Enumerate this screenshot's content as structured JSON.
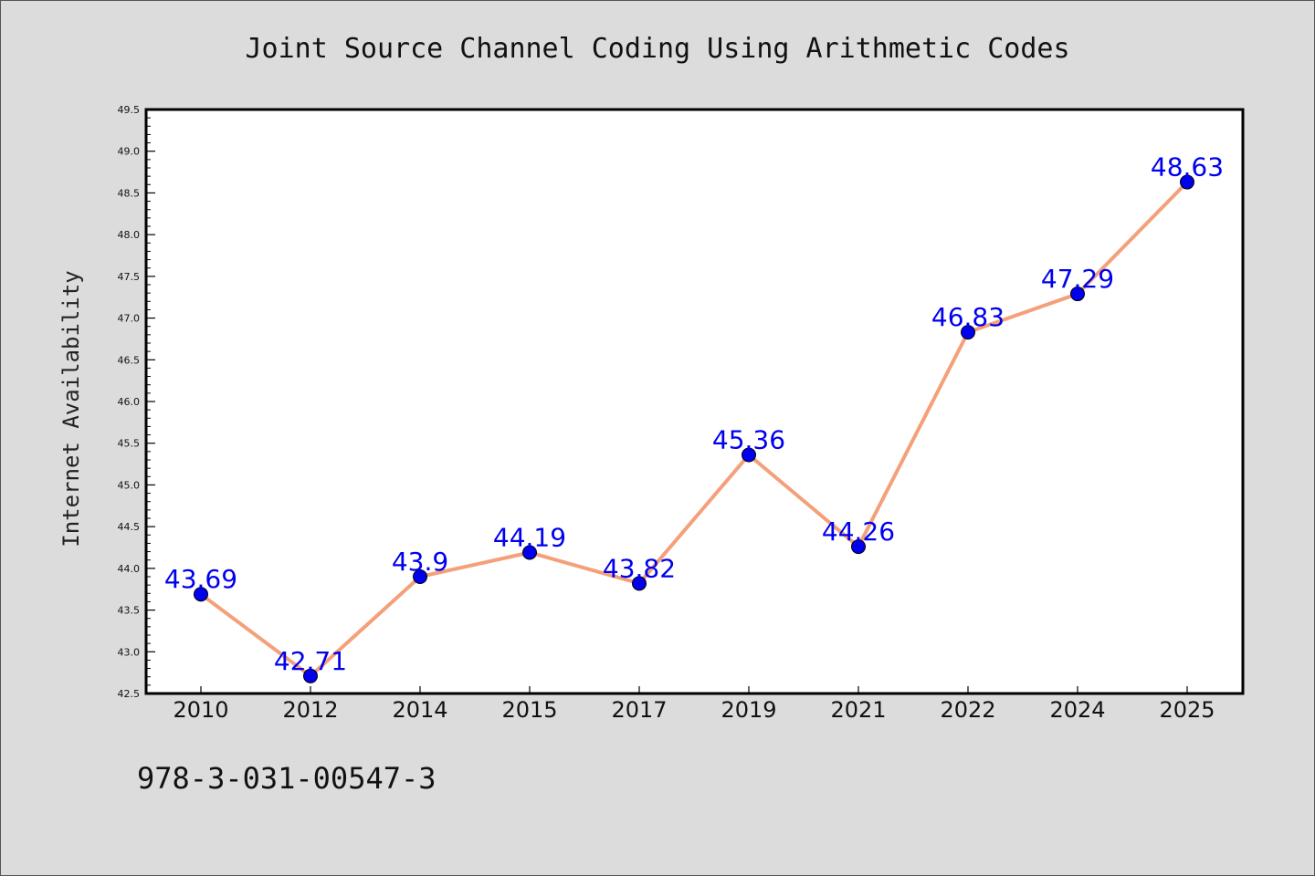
{
  "chart_data": {
    "type": "line",
    "title": "Joint Source Channel Coding Using Arithmetic Codes",
    "xlabel": "",
    "ylabel": "Internet Availability",
    "categories": [
      "2010",
      "2012",
      "2014",
      "2015",
      "2017",
      "2019",
      "2021",
      "2022",
      "2024",
      "2025"
    ],
    "series": [
      {
        "values": [
          43.69,
          42.71,
          43.9,
          44.19,
          43.82,
          45.36,
          44.26,
          46.83,
          47.29,
          48.63
        ],
        "labels": [
          "43.69",
          "42.71",
          "43.9",
          "44.19",
          "43.82",
          "45.36",
          "44.26",
          "46.83",
          "47.29",
          "48.63"
        ]
      }
    ],
    "ylim": [
      42.5,
      49.5
    ],
    "yticks": [
      "42.5",
      "43.0",
      "43.5",
      "44.0",
      "44.5",
      "45.0",
      "45.5",
      "46.0",
      "46.5",
      "47.0",
      "47.5",
      "48.0",
      "48.5",
      "49.0",
      "49.5"
    ],
    "grid": false,
    "colors": {
      "line": "#f4a07a",
      "marker": "#0000ee",
      "label": "#0000ee"
    }
  },
  "annotation": "978-3-031-00547-3"
}
